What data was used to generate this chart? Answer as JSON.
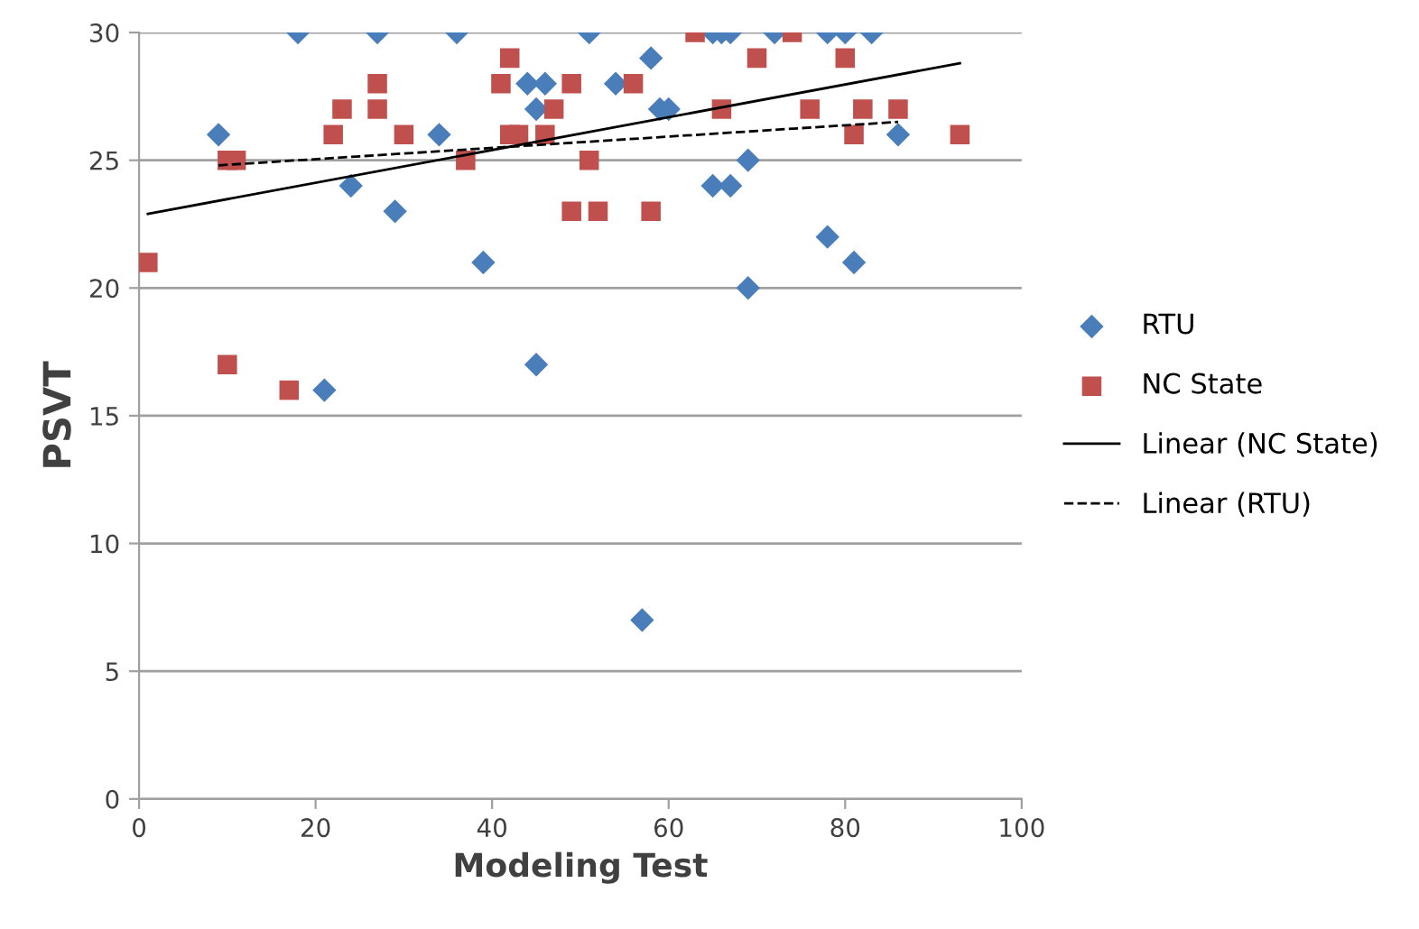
{
  "chart_data": {
    "type": "scatter",
    "xlabel": "Modeling Test",
    "ylabel": "PSVT",
    "xlim": [
      0,
      100
    ],
    "xticks": [
      0,
      20,
      40,
      60,
      80,
      100
    ],
    "ylim": [
      0,
      30
    ],
    "yticks": [
      0,
      5,
      10,
      15,
      20,
      25,
      30
    ],
    "grid": "y",
    "legend": "right",
    "series": [
      {
        "name": "RTU",
        "color": "#4a7ebb",
        "marker": "diamond",
        "x": [
          9,
          18,
          21,
          24,
          27,
          29,
          34,
          36,
          39,
          44,
          45,
          45,
          46,
          51,
          54,
          57,
          58,
          59,
          60,
          65,
          66,
          67,
          65,
          67,
          69,
          69,
          72,
          78,
          78,
          80,
          81,
          83,
          86
        ],
        "values": [
          26,
          30,
          16,
          24,
          30,
          23,
          26,
          30,
          21,
          28,
          27,
          17,
          28,
          30,
          28,
          7,
          29,
          27,
          27,
          30,
          30,
          30,
          24,
          24,
          25,
          20,
          30,
          30,
          22,
          30,
          21,
          30,
          26
        ]
      },
      {
        "name": "NC State",
        "color": "#c0504d",
        "marker": "square",
        "x": [
          1,
          10,
          11,
          10,
          17,
          22,
          23,
          27,
          27,
          30,
          37,
          41,
          42,
          42,
          43,
          46,
          47,
          49,
          49,
          51,
          52,
          56,
          58,
          63,
          66,
          70,
          74,
          76,
          80,
          81,
          82,
          86,
          93
        ],
        "values": [
          21,
          25,
          25,
          17,
          16,
          26,
          27,
          28,
          27,
          26,
          25,
          28,
          29,
          26,
          26,
          26,
          27,
          28,
          23,
          25,
          23,
          28,
          23,
          30,
          27,
          29,
          30,
          27,
          29,
          26,
          27,
          27,
          26
        ]
      },
      {
        "name": "Linear (NC State)",
        "type": "line",
        "color": "#000000",
        "line_style": "solid",
        "marker": "none",
        "x": [
          1,
          93
        ],
        "values": [
          22.9,
          28.8
        ]
      },
      {
        "name": "Linear (RTU)",
        "type": "line",
        "color": "#000000",
        "line_style": "dashed",
        "marker": "none",
        "x": [
          9,
          86
        ],
        "values": [
          24.8,
          26.5
        ]
      }
    ]
  }
}
